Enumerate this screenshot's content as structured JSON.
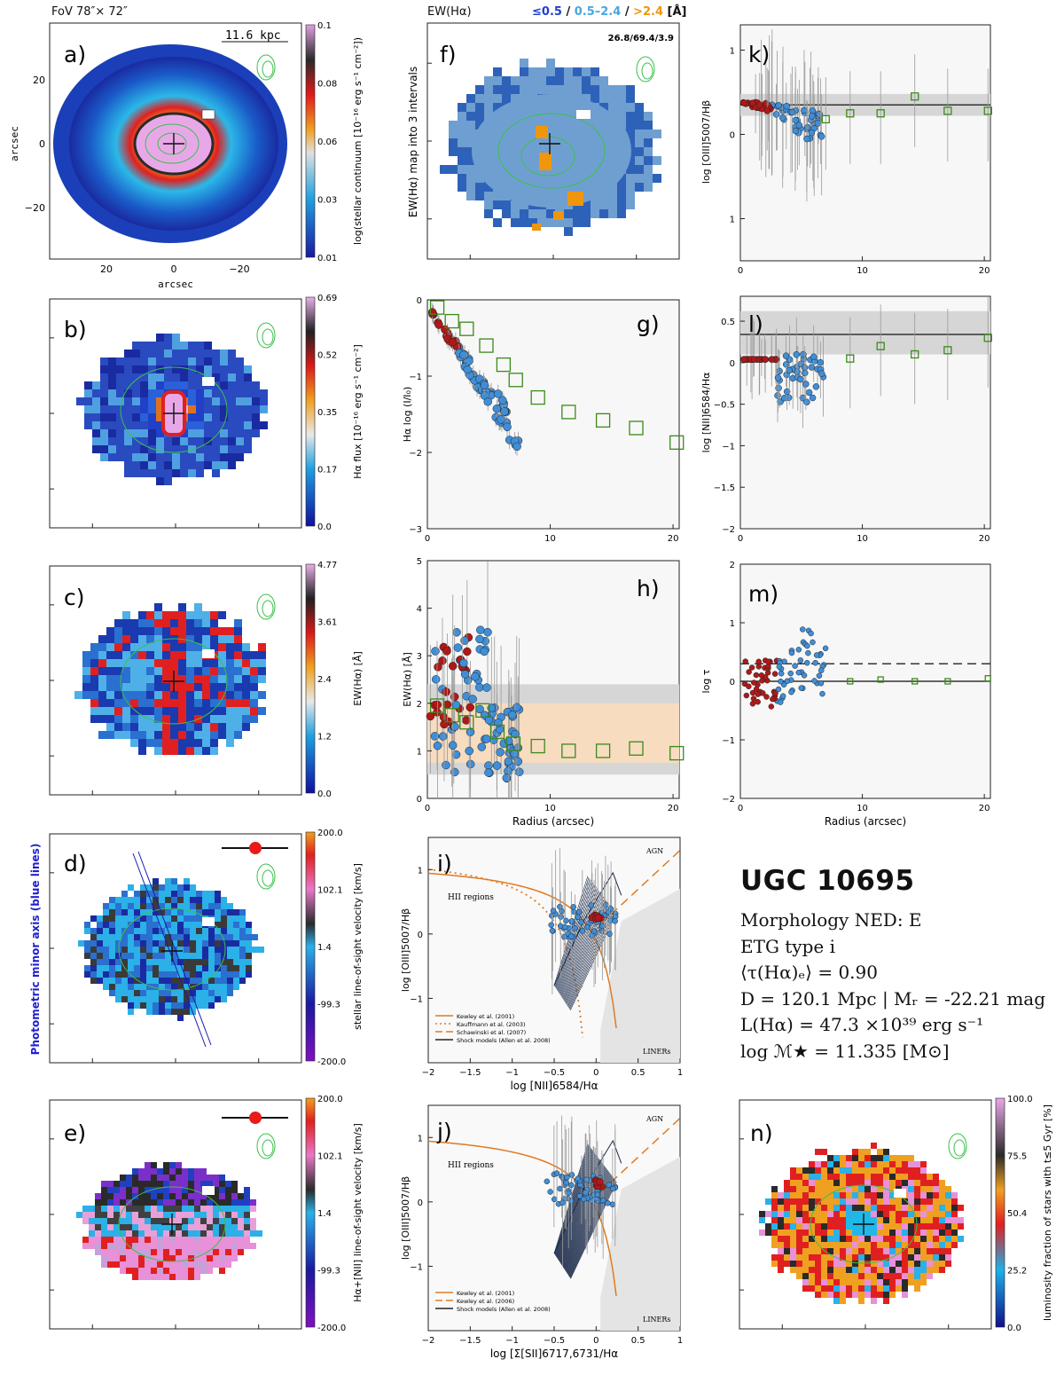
{
  "header": {
    "fov": "FoV 78″× 72″",
    "ew_title": "EW(Hα)",
    "ew_legend": [
      {
        "text": "≤0.5",
        "color": "#1f3fd0"
      },
      {
        "text": " / ",
        "color": "#111111"
      },
      {
        "text": "0.5–2.4",
        "color": "#4aa6e0"
      },
      {
        "text": " / ",
        "color": "#111111"
      },
      {
        "text": ">2.4",
        "color": "#f0960c"
      },
      {
        "text": " [Å]",
        "color": "#111111"
      }
    ]
  },
  "colors": {
    "blue_point": "#3f8ed8",
    "red_point": "#b01818",
    "green_square": "#3a8a1a",
    "band_grey": "#d6d6d6",
    "band_orange": "#f7dcc0",
    "ew_dark": "#2e62b8",
    "ew_mid": "#6f9fd0",
    "ew_orange": "#f0960c",
    "contour_green": "#39c24a",
    "diag_orange": "#e07a20"
  },
  "panels": {
    "a": {
      "letter": "a)",
      "scale_label": "11.6 kpc",
      "xlabel": "arcsec",
      "ylabel": "arcsec",
      "x_ticks": [
        "20",
        "0",
        "−20"
      ],
      "y_ticks": [
        "20",
        "0",
        "−20"
      ],
      "cbar_label": "log(stellar continuum [10⁻¹⁶ erg s⁻¹ cm⁻²])",
      "cbar_ticks": [
        "0.1",
        "0.08",
        "0.06",
        "0.03",
        "0.01"
      ]
    },
    "b": {
      "letter": "b)",
      "cbar_label": "Hα flux [10⁻¹⁶ erg s⁻¹ cm⁻²]",
      "cbar_ticks": [
        "0.69",
        "0.52",
        "0.35",
        "0.17",
        "0.0"
      ]
    },
    "c": {
      "letter": "c)",
      "cbar_label": "EW(Hα) [Å]",
      "cbar_ticks": [
        "4.77",
        "3.61",
        "2.4",
        "1.2",
        "0.0"
      ]
    },
    "d": {
      "letter": "d)",
      "side_label": "Photometric minor axis (blue lines)",
      "cbar_label": "stellar line-of-sight velocity [km/s]",
      "cbar_ticks": [
        "200.0",
        "102.1",
        "1.4",
        "-99.3",
        "-200.0"
      ]
    },
    "e": {
      "letter": "e)",
      "cbar_label": "Hα+[NII] line-of-sight velocity [km/s]",
      "cbar_ticks": [
        "200.0",
        "102.1",
        "1.4",
        "-99.3",
        "-200.0"
      ]
    },
    "f": {
      "letter": "f)",
      "ylabel": "EW(Hα) map into 3 intervals",
      "stats": "26.8/69.4/3.9"
    },
    "g": {
      "letter": "g)",
      "ylabel": "Hα log (I/I₀)"
    },
    "h": {
      "letter": "h)",
      "ylabel": "EW(Hα) [Å]",
      "xlabel": "Radius (arcsec)"
    },
    "i": {
      "letter": "i)",
      "ylabel": "log [OIII]5007/Hβ",
      "xlabel": "log [NII]6584/Hα",
      "region_agn": "AGN",
      "region_hii": "HII regions",
      "region_liner": "LINERs",
      "legend": [
        "Kewley et al. (2001)",
        "Kauffmann et al. (2003)",
        "Schawinski et al. (2007)",
        "Shock models (Allen et al. 2008)"
      ]
    },
    "j": {
      "letter": "j)",
      "ylabel": "log [OIII]5007/Hβ",
      "xlabel": "log [Σ[SII]6717,6731/Hα",
      "region_agn": "AGN",
      "region_hii": "HII regions",
      "region_liner": "LINERs",
      "legend": [
        "Kewley et al. (2001)",
        "Kewley et al. (2006)",
        "Shock models (Allen et al. 2008)"
      ]
    },
    "k": {
      "letter": "k)",
      "ylabel": "log [OIII]5007/Hβ"
    },
    "l": {
      "letter": "l)",
      "ylabel": "log [NII]6584/Hα"
    },
    "m": {
      "letter": "m)",
      "ylabel": "log τ",
      "xlabel": "Radius (arcsec)"
    },
    "n": {
      "letter": "n)",
      "cbar_label": "luminosity fraction of stars with t≤5 Gyr [%]",
      "cbar_ticks": [
        "100.0",
        "75.5",
        "50.4",
        "25.2",
        "0.0"
      ]
    }
  },
  "info": {
    "galaxy": "UGC 10695",
    "morphology": "Morphology NED: E",
    "etg_type": "ETG type i",
    "tau": "⟨τ(Hα)ₑ⟩ = 0.90",
    "distance": "D = 120.1 Mpc | Mᵣ = -22.21 mag",
    "lha": "L(Hα) = 47.3 ×10³⁹ erg s⁻¹",
    "mass": "log ℳ★ = 11.335 [M⊙]"
  },
  "chart_data": [
    {
      "panel": "g",
      "type": "scatter",
      "xlabel": "",
      "ylabel": "Hα log (I/I₀)",
      "xlim": [
        0,
        20.5
      ],
      "ylim": [
        -3,
        0
      ],
      "x_ticks": [
        0,
        10,
        20
      ],
      "y_ticks": [
        0,
        -1,
        -2,
        -3
      ],
      "binned_squares": {
        "x": [
          0.8,
          2.0,
          3.2,
          4.8,
          6.2,
          7.2,
          9.0,
          11.5,
          14.3,
          17.0,
          20.3
        ],
        "y": [
          -0.1,
          -0.28,
          -0.38,
          -0.6,
          -0.85,
          -1.05,
          -1.28,
          -1.47,
          -1.58,
          -1.68,
          -1.87
        ]
      }
    },
    {
      "panel": "h",
      "type": "scatter",
      "xlabel": "Radius (arcsec)",
      "ylabel": "EW(Hα) [Å]",
      "xlim": [
        0,
        20.5
      ],
      "ylim": [
        0,
        5
      ],
      "x_ticks": [
        0,
        10,
        20
      ],
      "y_ticks": [
        0,
        1,
        2,
        3,
        4,
        5
      ],
      "grey_band": [
        0.5,
        2.4
      ],
      "orange_band": [
        0.75,
        2.0
      ],
      "binned_squares": {
        "x": [
          0.8,
          2.0,
          3.2,
          4.5,
          5.7,
          7.0,
          9.0,
          11.5,
          14.3,
          17.0,
          20.3
        ],
        "y": [
          1.95,
          1.75,
          1.6,
          1.85,
          1.4,
          1.15,
          1.1,
          1.0,
          1.0,
          1.05,
          0.95
        ]
      }
    },
    {
      "panel": "k",
      "type": "scatter",
      "xlabel": "",
      "ylabel": "log [OIII]5007/Hβ",
      "xlim": [
        0,
        20.5
      ],
      "y_tick_labels": [
        "1",
        "0",
        "1"
      ],
      "x_ticks": [
        0,
        10,
        20
      ],
      "mean_line": 0.35,
      "band": [
        0.22,
        0.48
      ],
      "binned_squares": {
        "x": [
          7.0,
          9.0,
          11.5,
          14.3,
          17.0,
          20.3
        ],
        "y": [
          0.18,
          0.25,
          0.25,
          0.45,
          0.28,
          0.28
        ]
      }
    },
    {
      "panel": "l",
      "type": "scatter",
      "xlabel": "",
      "ylabel": "log [NII]6584/Hα",
      "xlim": [
        0,
        20.5
      ],
      "ylim": [
        -2,
        0.8
      ],
      "x_ticks": [
        0,
        10,
        20
      ],
      "y_ticks": [
        0.5,
        0,
        -0.5,
        -1,
        -1.5,
        -2
      ],
      "mean_line": 0.34,
      "band": [
        0.1,
        0.62
      ],
      "binned_squares": {
        "x": [
          9.0,
          11.5,
          14.3,
          17.0,
          20.3
        ],
        "y": [
          0.05,
          0.2,
          0.1,
          0.15,
          0.3
        ]
      }
    },
    {
      "panel": "m",
      "type": "scatter",
      "xlabel": "Radius (arcsec)",
      "ylabel": "log τ",
      "xlim": [
        0,
        20.5
      ],
      "ylim": [
        -2,
        2
      ],
      "x_ticks": [
        0,
        10,
        20
      ],
      "y_ticks": [
        2,
        1,
        0,
        -1,
        -2
      ],
      "dashed_line": 0.3,
      "solid_line": 0.0,
      "binned_squares": {
        "x": [
          9.0,
          11.5,
          14.3,
          17.0,
          20.3
        ],
        "y": [
          0.0,
          0.03,
          0.0,
          0.0,
          0.05
        ]
      }
    },
    {
      "panel": "i",
      "type": "scatter",
      "xlabel": "log [NII]6584/Hα",
      "ylabel": "log [OIII]5007/Hβ",
      "xlim": [
        -2,
        1
      ],
      "ylim": [
        -2,
        1.5
      ],
      "x_ticks": [
        -2,
        -1.5,
        -1,
        -0.5,
        0,
        0.5,
        1
      ],
      "y_ticks": [
        1,
        0,
        -1
      ]
    },
    {
      "panel": "j",
      "type": "scatter",
      "xlabel": "log [Σ[SII]6717,6731/Hα",
      "ylabel": "log [OIII]5007/Hβ",
      "xlim": [
        -2,
        1
      ],
      "ylim": [
        -2,
        1.5
      ],
      "x_ticks": [
        -2,
        -1.5,
        -1,
        -0.5,
        0,
        0.5,
        1
      ],
      "y_ticks": [
        1,
        0,
        -1
      ]
    }
  ]
}
